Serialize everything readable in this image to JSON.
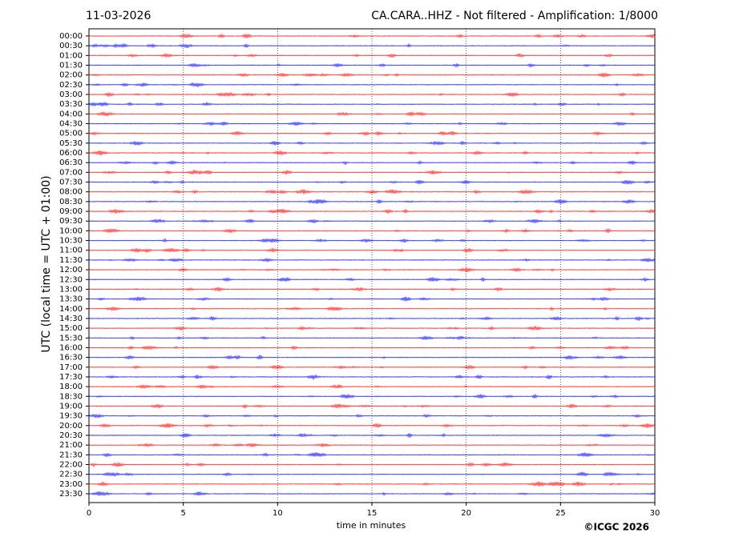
{
  "chart_data": {
    "type": "helicorder",
    "date": "11-03-2026",
    "title": "CA.CARA..HHZ - Not filtered - Amplification: 1/8000",
    "xlabel": "time in minutes",
    "ylabel": "UTC (local time = UTC + 01:00)",
    "copyright": "©ICGC 2026",
    "categories": [
      "00:00",
      "00:30",
      "01:00",
      "01:30",
      "02:00",
      "02:30",
      "03:00",
      "03:30",
      "04:00",
      "04:30",
      "05:00",
      "05:30",
      "06:00",
      "06:30",
      "07:00",
      "07:30",
      "08:00",
      "08:30",
      "09:00",
      "09:30",
      "10:00",
      "10:30",
      "11:00",
      "11:30",
      "12:00",
      "12:30",
      "13:00",
      "13:30",
      "14:00",
      "14:30",
      "15:00",
      "15:30",
      "16:00",
      "16:30",
      "17:00",
      "17:30",
      "18:00",
      "18:30",
      "19:00",
      "19:30",
      "20:00",
      "20:30",
      "21:00",
      "21:30",
      "22:00",
      "22:30",
      "23:00",
      "23:30"
    ],
    "colors": [
      "#ff0000",
      "#0000ff"
    ],
    "xlim": [
      0,
      30
    ],
    "xticks": [
      0,
      5,
      10,
      15,
      20,
      25,
      30
    ],
    "grid": true
  }
}
